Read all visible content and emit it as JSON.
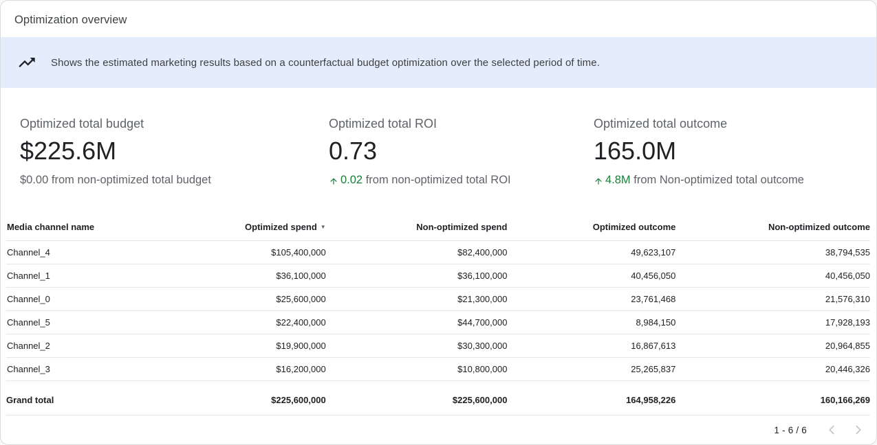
{
  "header": {
    "title": "Optimization overview"
  },
  "banner": {
    "icon": "insights-icon",
    "text": "Shows the estimated marketing results based on a counterfactual budget optimization over the selected period of time."
  },
  "kpis": [
    {
      "label": "Optimized total budget",
      "value": "$225.6M",
      "delta": "$0.00",
      "delta_suffix": " from non-optimized total budget",
      "delta_positive": false
    },
    {
      "label": "Optimized total ROI",
      "value": "0.73",
      "delta": "0.02",
      "delta_suffix": " from non-optimized total ROI",
      "delta_positive": true
    },
    {
      "label": "Optimized total outcome",
      "value": "165.0M",
      "delta": "4.8M",
      "delta_suffix": " from Non-optimized total outcome",
      "delta_positive": true
    }
  ],
  "table": {
    "columns": [
      "Media channel name",
      "Optimized spend",
      "Non-optimized spend",
      "Optimized outcome",
      "Non-optimized outcome"
    ],
    "sorted_column": "Optimized spend",
    "sort_direction": "desc",
    "rows": [
      [
        "Channel_4",
        "$105,400,000",
        "$82,400,000",
        "49,623,107",
        "38,794,535"
      ],
      [
        "Channel_1",
        "$36,100,000",
        "$36,100,000",
        "40,456,050",
        "40,456,050"
      ],
      [
        "Channel_0",
        "$25,600,000",
        "$21,300,000",
        "23,761,468",
        "21,576,310"
      ],
      [
        "Channel_5",
        "$22,400,000",
        "$44,700,000",
        "8,984,150",
        "17,928,193"
      ],
      [
        "Channel_2",
        "$19,900,000",
        "$30,300,000",
        "16,867,613",
        "20,964,855"
      ],
      [
        "Channel_3",
        "$16,200,000",
        "$10,800,000",
        "25,265,837",
        "20,446,326"
      ]
    ],
    "grand_total": [
      "Grand total",
      "$225,600,000",
      "$225,600,000",
      "164,958,226",
      "160,166,269"
    ]
  },
  "pagination": {
    "label": "1 - 6 / 6"
  },
  "colors": {
    "banner_bg": "#e4edfb",
    "positive_green": "#188038",
    "text_primary": "#202124",
    "text_secondary": "#5f6368",
    "divider": "#e6e6e6",
    "disabled_icon": "#c4c7cc"
  }
}
